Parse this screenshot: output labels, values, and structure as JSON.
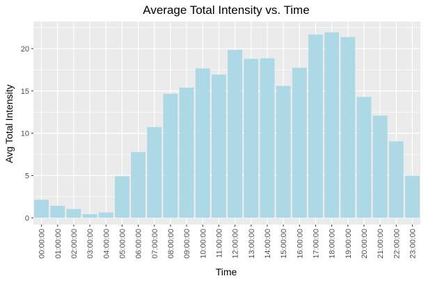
{
  "chart_data": {
    "type": "bar",
    "title": "Average Total Intensity vs. Time",
    "xlabel": "Time",
    "ylabel": "Avg Total Intensity",
    "categories": [
      "00:00:00",
      "01:00:00",
      "02:00:00",
      "03:00:00",
      "04:00:00",
      "05:00:00",
      "06:00:00",
      "07:00:00",
      "08:00:00",
      "09:00:00",
      "10:00:00",
      "11:00:00",
      "12:00:00",
      "13:00:00",
      "14:00:00",
      "15:00:00",
      "16:00:00",
      "17:00:00",
      "18:00:00",
      "19:00:00",
      "20:00:00",
      "21:00:00",
      "22:00:00",
      "23:00:00"
    ],
    "values": [
      2.13,
      1.42,
      1.04,
      0.44,
      0.63,
      4.92,
      7.77,
      10.73,
      14.67,
      15.39,
      17.66,
      16.93,
      19.85,
      18.79,
      18.86,
      15.6,
      17.74,
      21.67,
      21.92,
      21.36,
      14.29,
      12.08,
      9.04,
      4.99
    ],
    "ylim": [
      -0.8,
      23.2
    ],
    "yticks": [
      0,
      5,
      10,
      15,
      20
    ],
    "grid": true,
    "colors": {
      "bar": "#add8e6",
      "panel": "#ebebeb",
      "grid_major": "#ffffff",
      "tick_text": "#4d4d4d",
      "tick_mark": "#333333"
    }
  }
}
